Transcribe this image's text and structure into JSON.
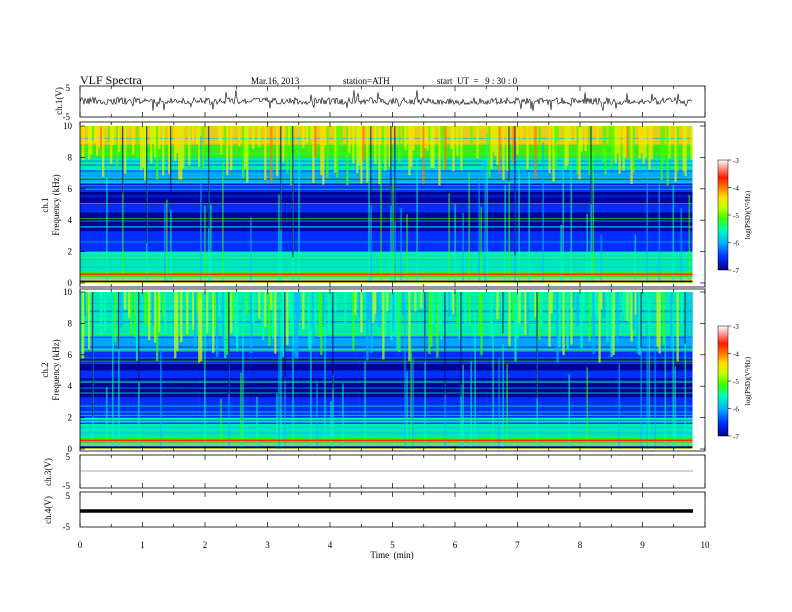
{
  "header": {
    "title": "VLF  Spectra",
    "date": "Mar.16, 2013",
    "station": "station=ATH",
    "start": "start  UT  =   9 : 30 : 0"
  },
  "colors": {
    "scale": [
      "#00008a",
      "#0030ff",
      "#00b4ff",
      "#00ffb0",
      "#40ff00",
      "#c8ff00",
      "#ffe000",
      "#ff7a00",
      "#ff1a00",
      "#ffffff"
    ]
  },
  "chart_data": [
    {
      "type": "line",
      "panel": "ch1-waveform",
      "ylabel": "ch.1(V)",
      "ylim": [
        -5,
        5
      ],
      "yticks": [
        "5",
        "-5"
      ],
      "xlim": [
        0,
        10
      ]
    },
    {
      "type": "heatmap",
      "panel": "ch1-spectrogram",
      "ylabel_top": "ch.1",
      "ylabel": "Frequency  (kHz)",
      "ylim": [
        0,
        10
      ],
      "yticks": [
        "0",
        "2",
        "4",
        "6",
        "8",
        "10"
      ],
      "xlim": [
        0,
        10
      ],
      "colorbar": {
        "label": "log(PSD)(V²/Hz)",
        "ticks": [
          "-3",
          "-4",
          "-5",
          "-6",
          "-7"
        ],
        "range": [
          -7,
          -3
        ]
      }
    },
    {
      "type": "heatmap",
      "panel": "ch2-spectrogram",
      "ylabel_top": "ch.2",
      "ylabel": "Frequency  (kHz)",
      "ylim": [
        0,
        10
      ],
      "yticks": [
        "0",
        "2",
        "4",
        "6",
        "8",
        "10"
      ],
      "xlim": [
        0,
        10
      ],
      "colorbar": {
        "label": "log(PSD)(V²/Hz)",
        "ticks": [
          "-3",
          "-4",
          "-5",
          "-6",
          "-7"
        ],
        "range": [
          -7,
          -3
        ]
      }
    },
    {
      "type": "line",
      "panel": "ch3-waveform",
      "ylabel": "ch.3(V)",
      "ylim": [
        -5,
        5
      ],
      "yticks": [
        "5",
        "-5"
      ],
      "xlim": [
        0,
        10
      ]
    },
    {
      "type": "line",
      "panel": "ch4-waveform",
      "ylabel": "ch.4(V)",
      "ylim": [
        -5,
        5
      ],
      "yticks": [
        "5",
        "-5"
      ],
      "xlim": [
        0,
        10
      ]
    },
    {
      "type": "axis",
      "xlabel": "Time  (min)",
      "xticks": [
        "0",
        "1",
        "2",
        "3",
        "4",
        "5",
        "6",
        "7",
        "8",
        "9",
        "10"
      ],
      "data_end_min": 9.8
    }
  ]
}
